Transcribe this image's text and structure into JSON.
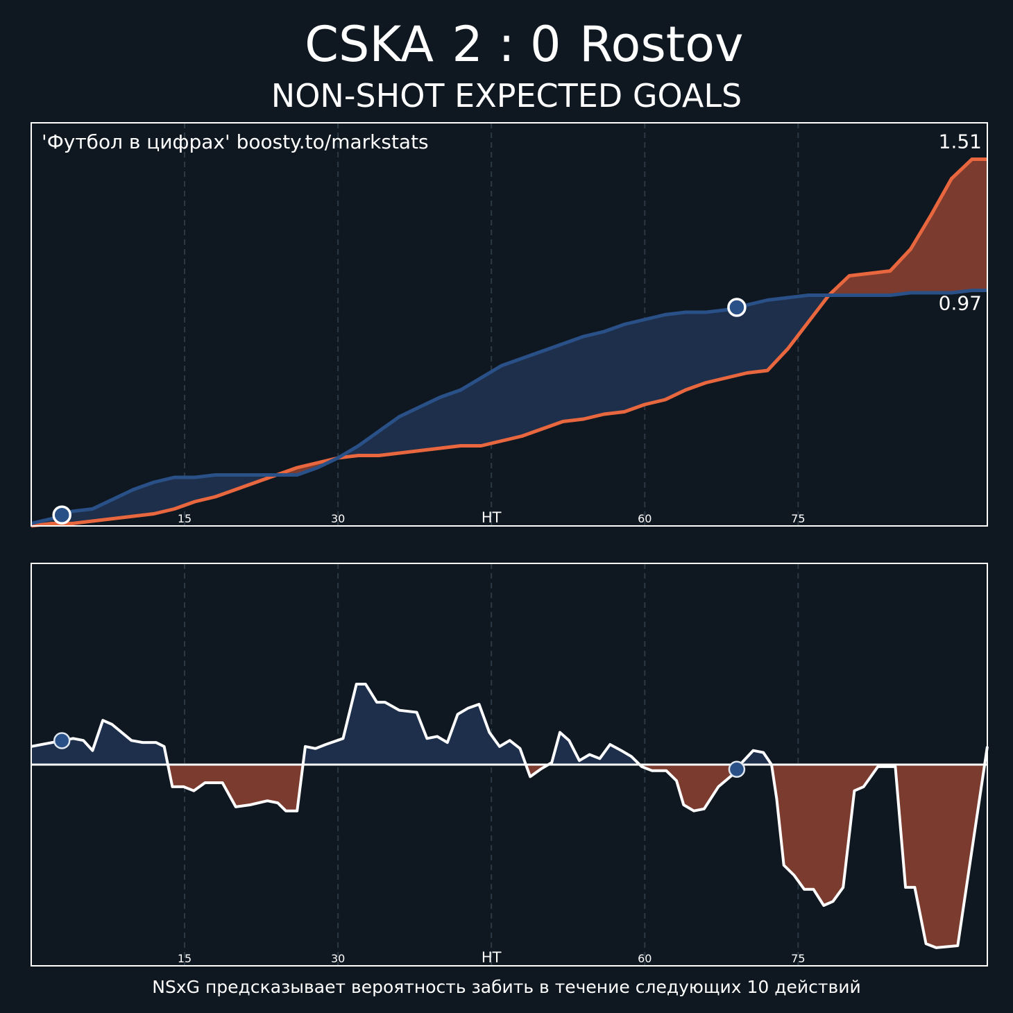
{
  "header": {
    "score": "2 : 0",
    "subtitle": "NON-SHOT EXPECTED GOALS"
  },
  "chart_data": [
    {
      "type": "line",
      "annotation": "'Футбол в цифрах' boosty.to/markstats",
      "x": [
        0,
        2,
        4,
        6,
        8,
        10,
        12,
        14,
        16,
        18,
        20,
        22,
        24,
        26,
        28,
        30,
        32,
        34,
        36,
        38,
        40,
        42,
        44,
        46,
        48,
        50,
        52,
        54,
        56,
        58,
        60,
        62,
        64,
        66,
        68,
        70,
        72,
        74,
        76,
        78,
        80,
        82,
        84,
        86,
        88,
        90,
        92,
        93.5
      ],
      "xlim": [
        0,
        93.5
      ],
      "xticks": [
        15,
        30,
        {
          "value": 45,
          "label": "HT"
        },
        60,
        75
      ],
      "ylim": [
        0,
        1.66
      ],
      "grid": true,
      "goals": [
        3,
        69
      ],
      "series": [
        {
          "name": "CSKA",
          "color": "#2a5088",
          "fill": "#1d2f4b",
          "values": [
            0.01,
            0.03,
            0.06,
            0.07,
            0.11,
            0.15,
            0.18,
            0.2,
            0.2,
            0.21,
            0.21,
            0.21,
            0.21,
            0.21,
            0.24,
            0.28,
            0.33,
            0.39,
            0.45,
            0.49,
            0.53,
            0.56,
            0.61,
            0.66,
            0.69,
            0.72,
            0.75,
            0.78,
            0.8,
            0.83,
            0.85,
            0.87,
            0.88,
            0.88,
            0.89,
            0.91,
            0.93,
            0.94,
            0.95,
            0.95,
            0.95,
            0.95,
            0.95,
            0.96,
            0.96,
            0.96,
            0.97,
            0.97
          ]
        },
        {
          "name": "Rostov",
          "color": "#e8673e",
          "fill": "#7b3b2f",
          "values": [
            0,
            0.01,
            0.01,
            0.02,
            0.03,
            0.04,
            0.05,
            0.07,
            0.1,
            0.12,
            0.15,
            0.18,
            0.21,
            0.24,
            0.26,
            0.28,
            0.29,
            0.29,
            0.3,
            0.31,
            0.32,
            0.33,
            0.33,
            0.35,
            0.37,
            0.4,
            0.43,
            0.44,
            0.46,
            0.47,
            0.5,
            0.52,
            0.56,
            0.59,
            0.61,
            0.63,
            0.64,
            0.73,
            0.84,
            0.95,
            1.03,
            1.04,
            1.05,
            1.14,
            1.28,
            1.43,
            1.51,
            1.51
          ]
        }
      ]
    },
    {
      "type": "area",
      "x": [
        0,
        3.1,
        4.1,
        5.1,
        6,
        7,
        7.9,
        9.8,
        10.9,
        12.2,
        13,
        13.8,
        14.9,
        15.9,
        17,
        18.7,
        20,
        21.4,
        23.1,
        24.1,
        24.9,
        26,
        26.8,
        27.8,
        28.8,
        30.5,
        31.8,
        32.7,
        33.8,
        34.6,
        36,
        37.7,
        38.7,
        39.7,
        40.7,
        41.7,
        42.7,
        43.8,
        44.8,
        45.8,
        46.8,
        47.8,
        48.8,
        49.9,
        50.9,
        51.7,
        52.6,
        53.6,
        54.6,
        55.6,
        56.6,
        57.7,
        58.7,
        59.7,
        60.7,
        62.1,
        63.1,
        63.8,
        64.8,
        65.8,
        67.2,
        68.6,
        69.5,
        70.6,
        71.6,
        72.4,
        72.9,
        73.6,
        74.6,
        75.6,
        76.5,
        77.5,
        78.4,
        79.4,
        80.5,
        81.4,
        82.8,
        84.5,
        85.5,
        86.4,
        87.5,
        88.5,
        90.6,
        93.5
      ],
      "values": [
        0.09,
        0.12,
        0.13,
        0.12,
        0.07,
        0.22,
        0.2,
        0.12,
        0.11,
        0.11,
        0.09,
        -0.11,
        -0.11,
        -0.13,
        -0.09,
        -0.09,
        -0.21,
        -0.2,
        -0.18,
        -0.19,
        -0.23,
        -0.23,
        0.09,
        0.08,
        0.1,
        0.13,
        0.4,
        0.4,
        0.31,
        0.31,
        0.27,
        0.26,
        0.13,
        0.14,
        0.11,
        0.25,
        0.28,
        0.3,
        0.16,
        0.09,
        0.12,
        0.08,
        -0.06,
        -0.02,
        0.01,
        0.16,
        0.12,
        0.02,
        0.05,
        0.03,
        0.1,
        0.07,
        0.04,
        -0.01,
        -0.03,
        -0.03,
        -0.08,
        -0.2,
        -0.23,
        -0.22,
        -0.11,
        -0.05,
        0.01,
        0.07,
        0.06,
        0,
        -0.17,
        -0.5,
        -0.55,
        -0.62,
        -0.62,
        -0.7,
        -0.68,
        -0.61,
        -0.13,
        -0.11,
        -0.01,
        -0.01,
        -0.61,
        -0.61,
        -0.89,
        -0.91,
        -0.9,
        0.09
      ],
      "xlim": [
        0,
        93.5
      ],
      "xticks": [
        15,
        30,
        {
          "value": 45,
          "label": "HT"
        },
        60,
        75
      ],
      "ylim": [
        -1,
        1
      ],
      "grid": true,
      "goals": [
        3,
        69
      ],
      "line_color": "#ffffff",
      "color_positive": "#1d2f4b",
      "color_negative": "#7b3b2f",
      "goal_color": "#2a5088"
    }
  ],
  "footer": "NSxG предсказывает вероятность забить в течение следующих 10 действий"
}
